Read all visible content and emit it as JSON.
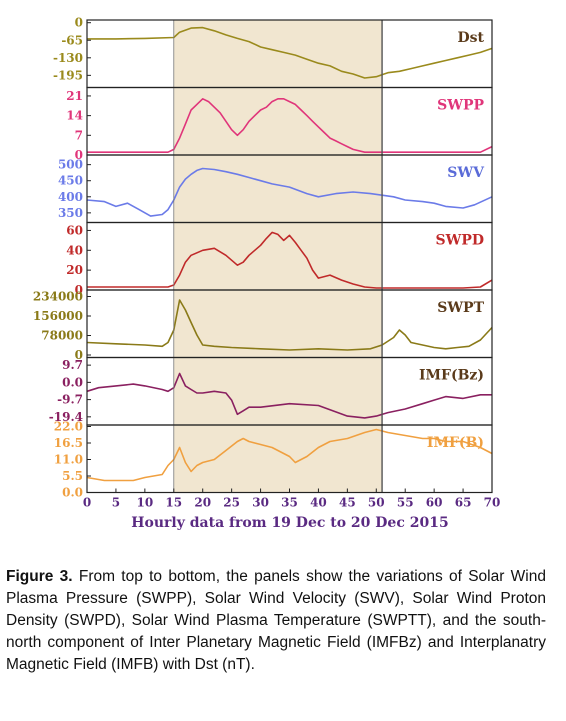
{
  "chart_data": {
    "type": "line",
    "xlabel": "Hourly data from 19 Dec to 20 Dec 2015",
    "xlim": [
      0,
      70
    ],
    "xticks": [
      0,
      5,
      10,
      15,
      20,
      25,
      30,
      35,
      40,
      45,
      50,
      55,
      60,
      65,
      70
    ],
    "highlight_x": [
      15,
      51
    ],
    "highlight_color": "#f1e6d0",
    "panels": [
      {
        "title": "Dst",
        "color": "#9a8a1c",
        "title_color": "#5a3a1a",
        "ylim": [
          -240,
          10
        ],
        "yticks": [
          0,
          -65,
          -130,
          -195
        ],
        "x": [
          0,
          5,
          10,
          15,
          16,
          18,
          20,
          22,
          24,
          26,
          28,
          30,
          32,
          34,
          36,
          38,
          40,
          42,
          44,
          46,
          48,
          50,
          52,
          54,
          56,
          58,
          60,
          62,
          64,
          66,
          68,
          70
        ],
        "y": [
          -60,
          -60,
          -58,
          -55,
          -35,
          -20,
          -18,
          -30,
          -45,
          -58,
          -70,
          -90,
          -100,
          -110,
          -120,
          -135,
          -150,
          -160,
          -180,
          -190,
          -205,
          -200,
          -185,
          -180,
          -170,
          -160,
          -150,
          -140,
          -130,
          -120,
          -110,
          -95
        ]
      },
      {
        "title": "SWPP",
        "color": "#e0357a",
        "title_color": "#e0357a",
        "ylim": [
          0,
          24
        ],
        "yticks": [
          21,
          14,
          7,
          0
        ],
        "x": [
          0,
          5,
          10,
          14,
          15,
          16,
          17,
          18,
          19,
          20,
          21,
          22,
          23,
          24,
          25,
          26,
          27,
          28,
          29,
          30,
          31,
          32,
          33,
          34,
          35,
          36,
          37,
          38,
          39,
          40,
          41,
          42,
          43,
          44,
          45,
          46,
          48,
          50,
          52,
          55,
          60,
          65,
          68,
          70
        ],
        "y": [
          1,
          1,
          1,
          1,
          2,
          6,
          11,
          16,
          18,
          20,
          19,
          17,
          15,
          12,
          9,
          7,
          9,
          12,
          14,
          16,
          17,
          19,
          20,
          20,
          19,
          18,
          16,
          14,
          12,
          10,
          8,
          6,
          5,
          4,
          3,
          2,
          1,
          1,
          1,
          1,
          1,
          1,
          1,
          3
        ]
      },
      {
        "title": "SWV",
        "color": "#6b7be8",
        "title_color": "#5a6bd8",
        "ylim": [
          320,
          530
        ],
        "yticks": [
          500,
          450,
          400,
          350
        ],
        "x": [
          0,
          3,
          5,
          7,
          9,
          11,
          13,
          14,
          15,
          16,
          17,
          18,
          19,
          20,
          22,
          24,
          26,
          28,
          30,
          32,
          35,
          38,
          40,
          43,
          46,
          49,
          51,
          53,
          55,
          58,
          60,
          62,
          65,
          67,
          70
        ],
        "y": [
          390,
          385,
          370,
          380,
          360,
          340,
          345,
          360,
          390,
          430,
          455,
          470,
          482,
          488,
          485,
          478,
          470,
          460,
          450,
          440,
          430,
          410,
          400,
          410,
          415,
          410,
          405,
          400,
          390,
          385,
          380,
          370,
          365,
          375,
          400
        ]
      },
      {
        "title": "SWPD",
        "color": "#c02a2a",
        "title_color": "#c02a2a",
        "ylim": [
          0,
          68
        ],
        "yticks": [
          60,
          40,
          20,
          0
        ],
        "x": [
          0,
          5,
          10,
          14,
          15,
          16,
          17,
          18,
          20,
          22,
          24,
          26,
          27,
          28,
          29,
          30,
          31,
          32,
          33,
          34,
          35,
          36,
          37,
          38,
          39,
          40,
          42,
          44,
          46,
          48,
          50,
          52,
          55,
          60,
          65,
          68,
          70
        ],
        "y": [
          3,
          3,
          3,
          3,
          5,
          15,
          28,
          35,
          40,
          42,
          35,
          25,
          28,
          35,
          40,
          45,
          52,
          58,
          56,
          50,
          55,
          48,
          40,
          32,
          20,
          12,
          15,
          10,
          6,
          3,
          2,
          2,
          2,
          2,
          2,
          3,
          10
        ]
      },
      {
        "title": "SWPT",
        "color": "#8a7a18",
        "title_color": "#5a3a1a",
        "ylim": [
          -10000,
          260000
        ],
        "yticks": [
          234000,
          156000,
          78000,
          0
        ],
        "x": [
          0,
          5,
          10,
          13,
          14,
          15,
          16,
          17,
          18,
          19,
          20,
          22,
          25,
          30,
          35,
          40,
          45,
          49,
          51,
          53,
          54,
          55,
          56,
          58,
          60,
          62,
          64,
          66,
          68,
          70
        ],
        "y": [
          50000,
          45000,
          40000,
          35000,
          50000,
          100000,
          220000,
          180000,
          130000,
          80000,
          40000,
          35000,
          30000,
          25000,
          20000,
          25000,
          20000,
          25000,
          40000,
          70000,
          100000,
          80000,
          50000,
          40000,
          30000,
          25000,
          30000,
          35000,
          60000,
          110000
        ]
      },
      {
        "title": "IMF(Bz)",
        "color": "#8a2060",
        "title_color": "#5a3a1a",
        "ylim": [
          -24,
          14
        ],
        "yticks": [
          9.7,
          0.0,
          -9.7,
          -19.4
        ],
        "yticklabels": [
          "9.7",
          "0.0",
          "-9.7",
          "-19.4"
        ],
        "x": [
          0,
          2,
          5,
          8,
          10,
          13,
          14,
          15,
          16,
          17,
          18,
          19,
          20,
          22,
          24,
          25,
          26,
          27,
          28,
          30,
          35,
          40,
          45,
          48,
          50,
          52,
          55,
          58,
          60,
          62,
          65,
          68,
          70
        ],
        "y": [
          -5,
          -3,
          -2,
          -1,
          -2,
          -4,
          -5,
          -3,
          5,
          -2,
          -4,
          -6,
          -6,
          -5,
          -6,
          -10,
          -18,
          -16,
          -14,
          -14,
          -12,
          -13,
          -19,
          -20,
          -19,
          -17,
          -15,
          -12,
          -10,
          -8,
          -9,
          -7,
          -7
        ]
      },
      {
        "title": "IMF(B)",
        "color": "#f0a040",
        "title_color": "#f0a040",
        "ylim": [
          0,
          22.5
        ],
        "yticks": [
          22.0,
          16.5,
          11.0,
          5.5,
          0.0
        ],
        "yticklabels": [
          "22.0",
          "16.5",
          "11.0",
          "5.5",
          "0.0"
        ],
        "x": [
          0,
          3,
          5,
          8,
          10,
          13,
          14,
          15,
          16,
          17,
          18,
          19,
          20,
          22,
          24,
          26,
          27,
          28,
          30,
          32,
          35,
          36,
          38,
          40,
          42,
          45,
          48,
          50,
          52,
          55,
          58,
          60,
          62,
          65,
          68,
          70
        ],
        "y": [
          5,
          4,
          4,
          4,
          5,
          6,
          9,
          11,
          15,
          10,
          7,
          9,
          10,
          11,
          14,
          17,
          18,
          17,
          16,
          15,
          12,
          10,
          12,
          15,
          17,
          18,
          20,
          21,
          20,
          19,
          18,
          18,
          17,
          17,
          15,
          13
        ]
      }
    ]
  },
  "caption": {
    "label": "Figure 3.",
    "text": " From top to bottom, the panels show the variations of Solar Wind Plasma Pressure (SWPP), Solar Wind Velocity (SWV), Solar Wind Proton Density (SWPD), Solar Wind Plasma Temperature (SWPTT), and the south-north component of Inter Planetary Magnetic Field (IMFBz) and Interplanatry Magnetic Field (IMFB) with Dst (nT)."
  }
}
